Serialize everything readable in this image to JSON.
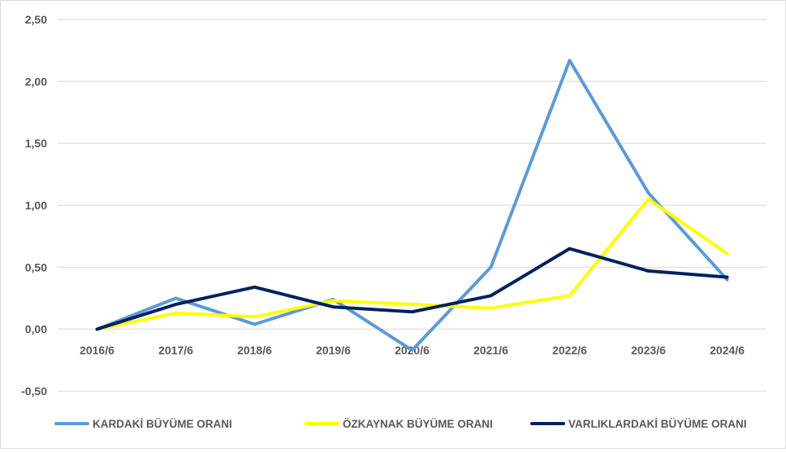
{
  "chart_data": {
    "type": "line",
    "title": "",
    "xlabel": "",
    "ylabel": "",
    "categories": [
      "2016/6",
      "2017/6",
      "2018/6",
      "2019/6",
      "2020/6",
      "2021/6",
      "2022/6",
      "2023/6",
      "2024/6"
    ],
    "ylim": [
      -0.5,
      2.5
    ],
    "yticks": [
      -0.5,
      0,
      0.5,
      1,
      1.5,
      2,
      2.5
    ],
    "ytick_labels": [
      "-0,50",
      "0,00",
      "0,50",
      "1,00",
      "1,50",
      "2,00",
      "2,50"
    ],
    "grid": true,
    "legend_position": "bottom",
    "series": [
      {
        "name": "KARDAKİ BÜYÜME ORANI",
        "color": "#5b9bd5",
        "values": [
          0.0,
          0.25,
          0.04,
          0.24,
          -0.17,
          0.5,
          2.17,
          1.1,
          0.4
        ]
      },
      {
        "name": "ÖZKAYNAK BÜYÜME ORANI",
        "color": "#ffff00",
        "values": [
          0.0,
          0.13,
          0.1,
          0.23,
          0.2,
          0.17,
          0.27,
          1.05,
          0.61
        ]
      },
      {
        "name": "VARLIKLARDAKİ BÜYÜME ORANI",
        "color": "#002060",
        "values": [
          0.0,
          0.2,
          0.34,
          0.18,
          0.14,
          0.27,
          0.65,
          0.47,
          0.42
        ]
      }
    ]
  }
}
